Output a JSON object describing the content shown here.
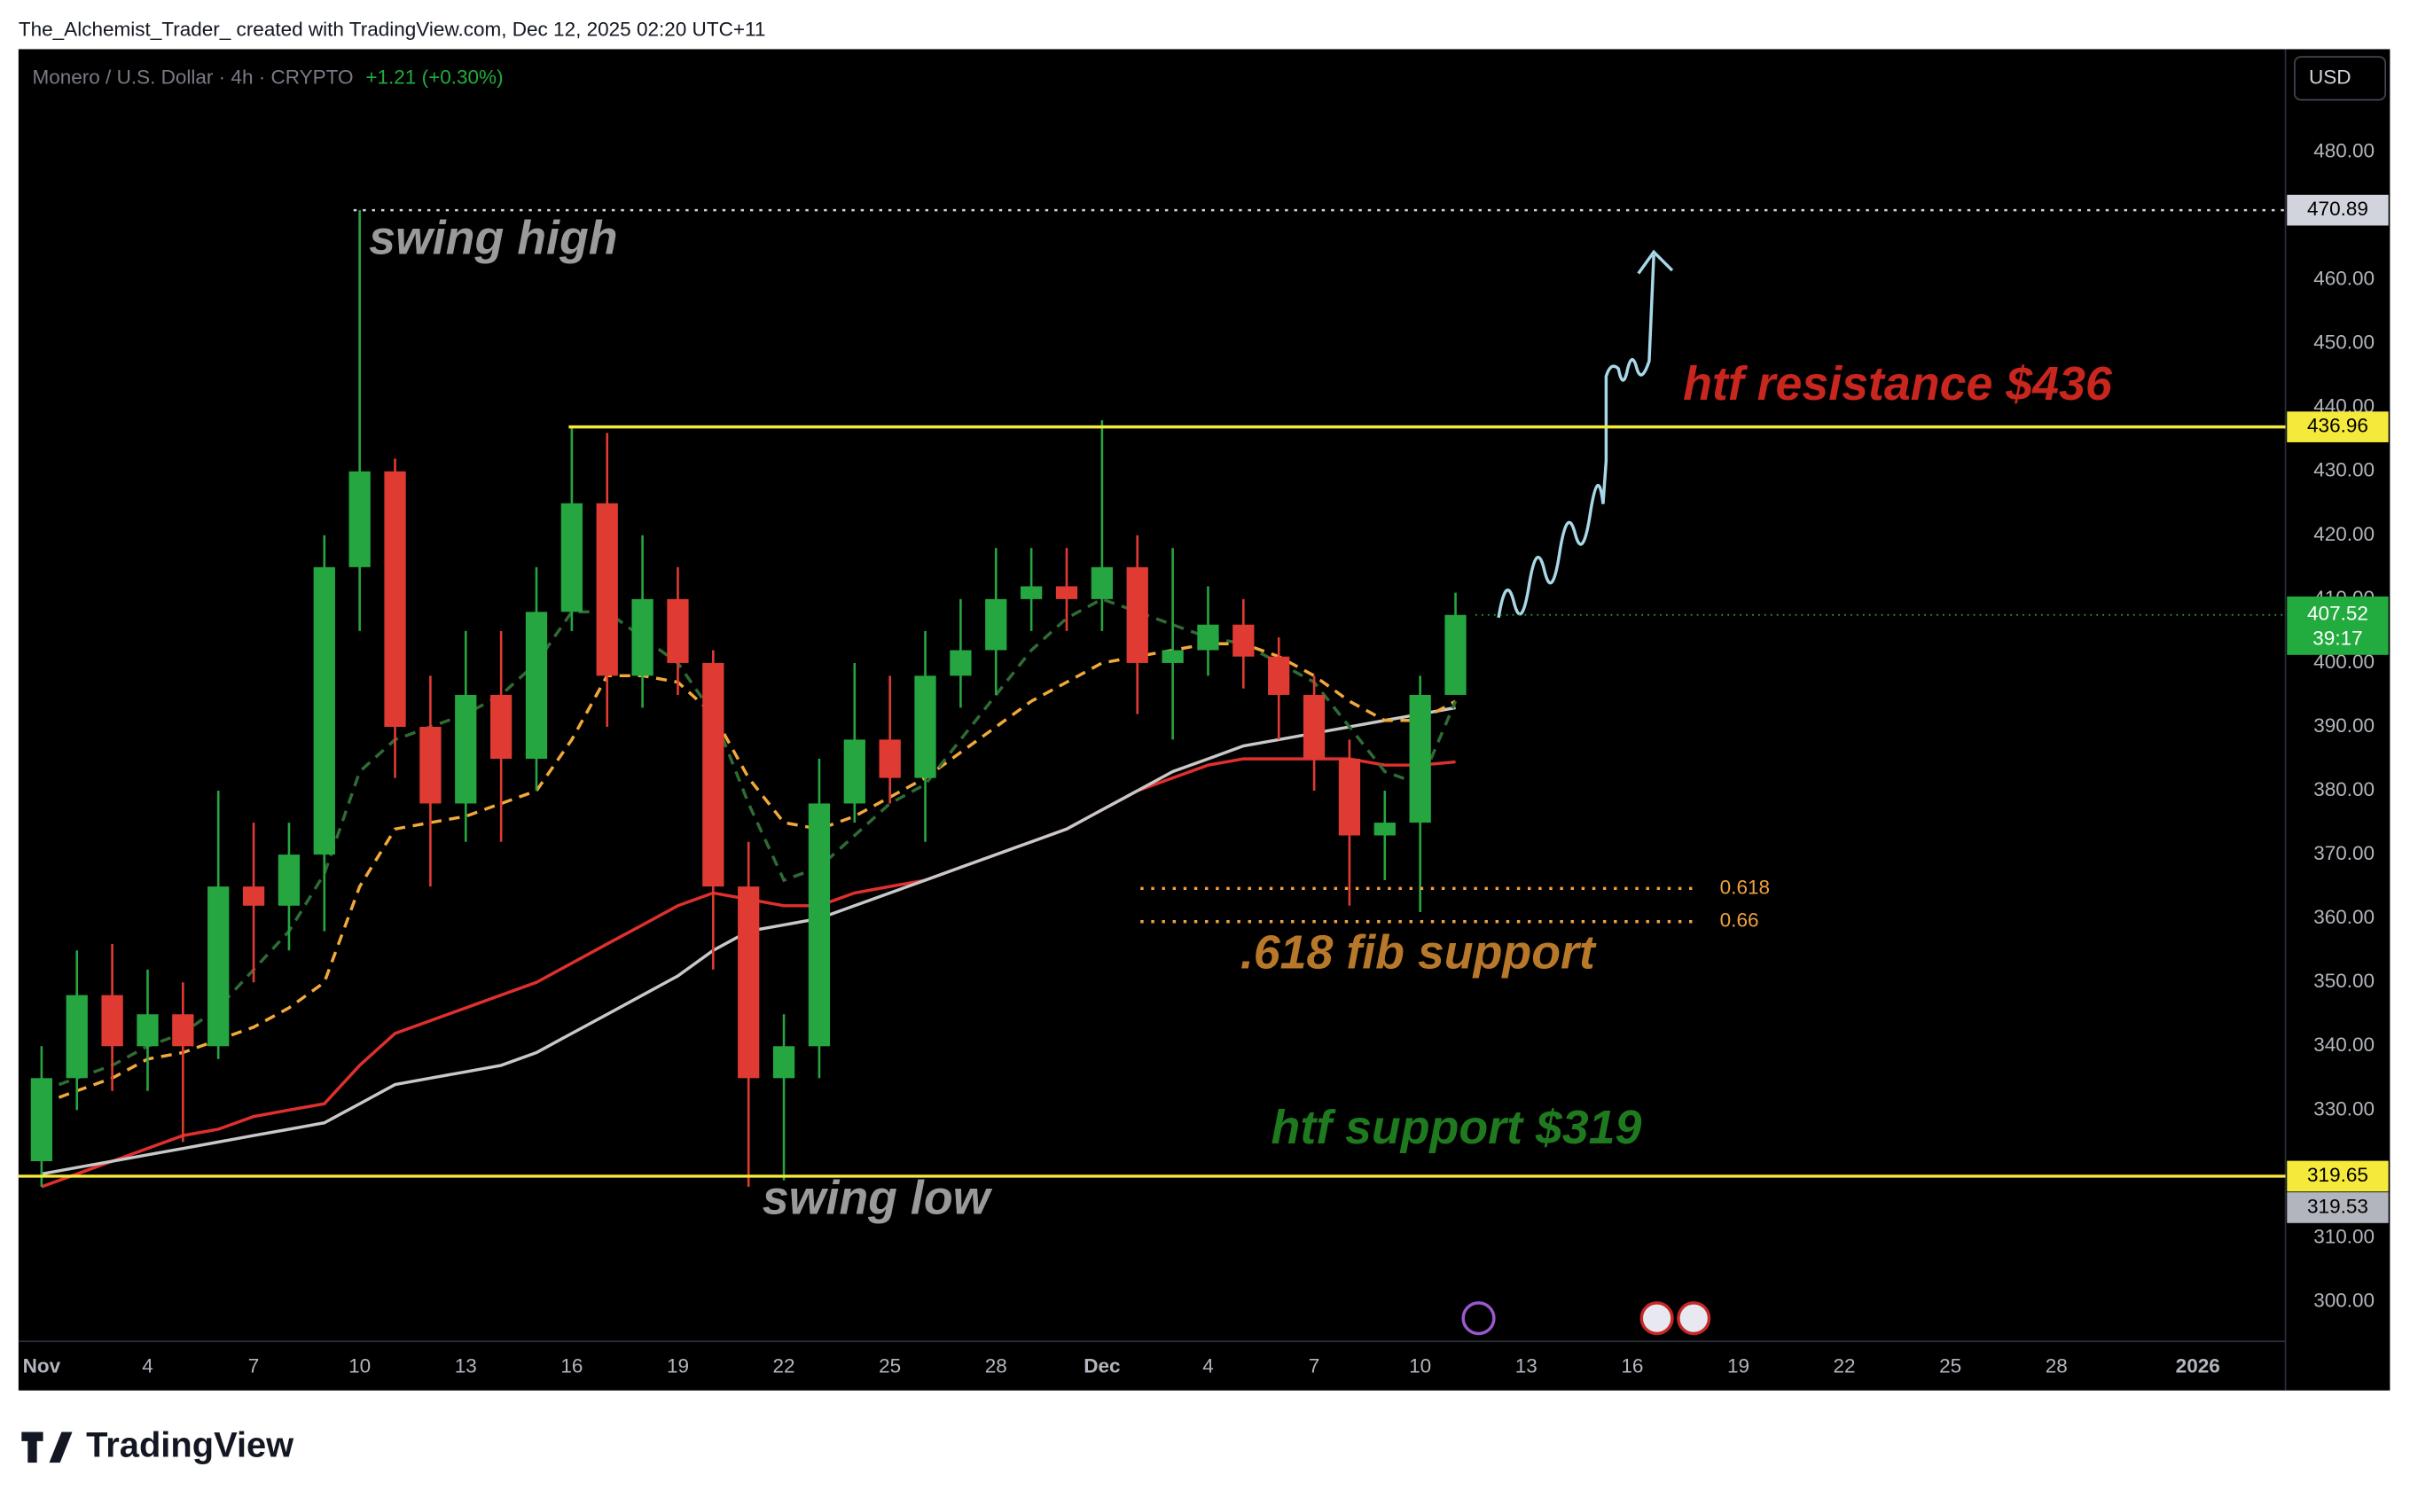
{
  "page": {
    "attribution": "The_Alchemist_Trader_ created with TradingView.com, Dec 12, 2025 02:20 UTC+11",
    "brand": "TradingView",
    "currency": "USD"
  },
  "chart_data": {
    "type": "candlestick",
    "header": {
      "symbol": "Monero / U.S. Dollar · 4h · CRYPTO",
      "change": "+1.21 (+0.30%)"
    },
    "x": [
      "2025-11-01",
      "2025-11-02",
      "2025-11-03",
      "2025-11-04",
      "2025-11-05",
      "2025-11-06",
      "2025-11-07",
      "2025-11-08",
      "2025-11-09",
      "2025-11-10",
      "2025-11-11",
      "2025-11-12",
      "2025-11-13",
      "2025-11-14",
      "2025-11-15",
      "2025-11-16",
      "2025-11-17",
      "2025-11-18",
      "2025-11-19",
      "2025-11-20",
      "2025-11-21",
      "2025-11-22",
      "2025-11-23",
      "2025-11-24",
      "2025-11-25",
      "2025-11-26",
      "2025-11-27",
      "2025-11-28",
      "2025-11-29",
      "2025-11-30",
      "2025-12-01",
      "2025-12-02",
      "2025-12-03",
      "2025-12-04",
      "2025-12-05",
      "2025-12-06",
      "2025-12-07",
      "2025-12-08",
      "2025-12-09",
      "2025-12-10",
      "2025-12-11"
    ],
    "open": [
      322,
      335,
      348,
      340,
      345,
      340,
      365,
      362,
      370,
      415,
      430,
      390,
      378,
      395,
      385,
      408,
      425,
      398,
      410,
      400,
      365,
      335,
      340,
      378,
      388,
      382,
      398,
      402,
      410,
      412,
      410,
      415,
      400,
      402,
      406,
      401,
      395,
      385,
      373,
      375,
      395
    ],
    "high": [
      340,
      355,
      356,
      352,
      350,
      380,
      375,
      375,
      420,
      470.89,
      432,
      398,
      405,
      405,
      415,
      437,
      436,
      420,
      415,
      402,
      372,
      345,
      385,
      400,
      398,
      405,
      410,
      418,
      418,
      418,
      438,
      420,
      418,
      412,
      410,
      404,
      398,
      388,
      380,
      398,
      411
    ],
    "low": [
      318,
      330,
      333,
      333,
      325,
      338,
      350,
      355,
      358,
      405,
      382,
      365,
      372,
      372,
      380,
      405,
      390,
      393,
      395,
      352,
      318,
      319,
      335,
      375,
      378,
      372,
      393,
      395,
      405,
      405,
      405,
      392,
      388,
      398,
      396,
      388,
      380,
      362,
      366,
      361,
      396
    ],
    "close": [
      335,
      348,
      340,
      345,
      340,
      365,
      362,
      370,
      415,
      430,
      390,
      378,
      395,
      385,
      408,
      425,
      398,
      410,
      400,
      365,
      335,
      340,
      378,
      388,
      382,
      398,
      402,
      410,
      412,
      410,
      415,
      400,
      402,
      406,
      401,
      395,
      385,
      373,
      375,
      395,
      407.52
    ],
    "up_color": "#26a641",
    "down_color": "#e03b32",
    "series": [
      {
        "color": "#e0302e",
        "style": "solid",
        "values": [
          318,
          320,
          322,
          324,
          326,
          327,
          329,
          330,
          331,
          337,
          342,
          344,
          346,
          348,
          350,
          353,
          356,
          359,
          362,
          364,
          363,
          362,
          362,
          364,
          365,
          366,
          368,
          370,
          372,
          374,
          377,
          380,
          382,
          384,
          385,
          385,
          385,
          385,
          384,
          384,
          384.5
        ]
      },
      {
        "color": "#c8c8c8",
        "style": "solid",
        "values": [
          320,
          321,
          322,
          323,
          324,
          325,
          326,
          327,
          328,
          331,
          334,
          335,
          336,
          337,
          339,
          342,
          345,
          348,
          351,
          355,
          358,
          359,
          360,
          362,
          364,
          366,
          368,
          370,
          372,
          374,
          377,
          380,
          383,
          385,
          387,
          388,
          389,
          390,
          391,
          392,
          393
        ]
      },
      {
        "color": "#f2a93b",
        "style": "dashed",
        "values": [
          331,
          333,
          335,
          338,
          339,
          341,
          343,
          346,
          350,
          365,
          374,
          375,
          376,
          378,
          380,
          388,
          398,
          398,
          397,
          392,
          382,
          375,
          374,
          376,
          379,
          382,
          386,
          390,
          394,
          397,
          400,
          401,
          402,
          403,
          403,
          401,
          398,
          394,
          391,
          391,
          394
        ]
      },
      {
        "color": "#2f6b35",
        "style": "dashed",
        "values": [
          333,
          335,
          337,
          340,
          342,
          346,
          352,
          358,
          367,
          383,
          388,
          390,
          392,
          395,
          400,
          408,
          408,
          404,
          400,
          392,
          378,
          366,
          368,
          373,
          378,
          381,
          388,
          395,
          402,
          407,
          410,
          408,
          406,
          404,
          403,
          400,
          397,
          390,
          383,
          381,
          394
        ]
      }
    ],
    "xlim": [
      "2025-10-31",
      "2026-01-04"
    ],
    "xticks": [
      {
        "value": "2025-11-01",
        "label": "Nov"
      },
      {
        "value": "2025-11-04",
        "label": "4"
      },
      {
        "value": "2025-11-07",
        "label": "7"
      },
      {
        "value": "2025-11-10",
        "label": "10"
      },
      {
        "value": "2025-11-13",
        "label": "13"
      },
      {
        "value": "2025-11-16",
        "label": "16"
      },
      {
        "value": "2025-11-19",
        "label": "19"
      },
      {
        "value": "2025-11-22",
        "label": "22"
      },
      {
        "value": "2025-11-25",
        "label": "25"
      },
      {
        "value": "2025-11-28",
        "label": "28"
      },
      {
        "value": "2025-12-01",
        "label": "Dec"
      },
      {
        "value": "2025-12-04",
        "label": "4"
      },
      {
        "value": "2025-12-07",
        "label": "7"
      },
      {
        "value": "2025-12-10",
        "label": "10"
      },
      {
        "value": "2025-12-13",
        "label": "13"
      },
      {
        "value": "2025-12-16",
        "label": "16"
      },
      {
        "value": "2025-12-19",
        "label": "19"
      },
      {
        "value": "2025-12-22",
        "label": "22"
      },
      {
        "value": "2025-12-25",
        "label": "25"
      },
      {
        "value": "2025-12-28",
        "label": "28"
      },
      {
        "value": "2026-01-01",
        "label": "2026"
      }
    ],
    "ylim": [
      293.8,
      496.1
    ],
    "yticks": [
      {
        "value": 300,
        "label": "300.00"
      },
      {
        "value": 310,
        "label": "310.00"
      },
      {
        "value": 320,
        "label": "320.00"
      },
      {
        "value": 330,
        "label": "330.00"
      },
      {
        "value": 340,
        "label": "340.00"
      },
      {
        "value": 350,
        "label": "350.00"
      },
      {
        "value": 360,
        "label": "360.00"
      },
      {
        "value": 370,
        "label": "370.00"
      },
      {
        "value": 380,
        "label": "380.00"
      },
      {
        "value": 390,
        "label": "390.00"
      },
      {
        "value": 400,
        "label": "400.00"
      },
      {
        "value": 410,
        "label": "410.00"
      },
      {
        "value": 420,
        "label": "420.00"
      },
      {
        "value": 430,
        "label": "430.00"
      },
      {
        "value": 440,
        "label": "440.00"
      },
      {
        "value": 450,
        "label": "450.00"
      },
      {
        "value": 460,
        "label": "460.00"
      },
      {
        "value": 470,
        "label": "470.00"
      },
      {
        "value": 480,
        "label": "480.00"
      }
    ],
    "levels": [
      {
        "value": 470.89,
        "color": "#d1d4dc",
        "style": "dotted"
      },
      {
        "value": 436.96,
        "color": "#f5ea3b",
        "style": "solid"
      },
      {
        "value": 319.65,
        "color": "#f5ea3b",
        "style": "solid"
      }
    ],
    "last_price": {
      "value": 407.52,
      "countdown": "39:17",
      "color": "#22ab3e"
    },
    "low_marker": {
      "value": 319.53,
      "color": "#b2b5be"
    },
    "fib": {
      "color": "#f0a040",
      "levels": [
        {
          "level": 0.618,
          "value": 364.7
        },
        {
          "level": 0.66,
          "value": 359.5
        }
      ]
    },
    "annotations": [
      {
        "text": "swing high",
        "color": "#9a9a9a"
      },
      {
        "text": "htf resistance $436",
        "color": "#c8261e"
      },
      {
        "text": ".618 fib support",
        "color": "#b8782a"
      },
      {
        "text": "htf support $319",
        "color": "#1f7a1f"
      },
      {
        "text": "swing low",
        "color": "#9a9a9a"
      }
    ]
  }
}
